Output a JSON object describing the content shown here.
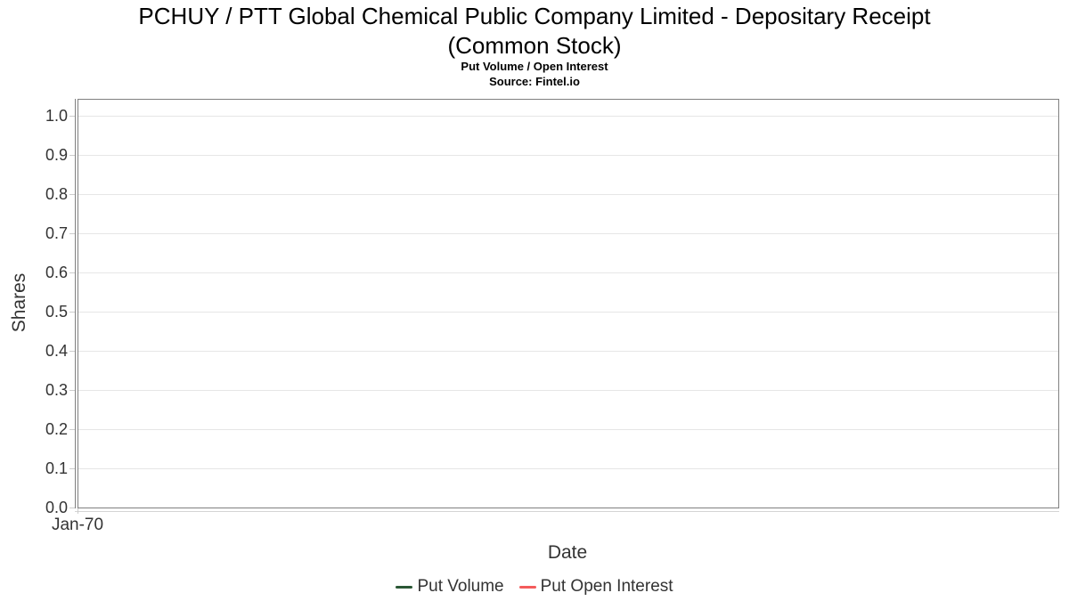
{
  "chart": {
    "title_line1": "PCHUY / PTT Global Chemical Public Company Limited - Depositary Receipt",
    "title_line2": "(Common Stock)",
    "subtitle": "Put Volume / Open Interest",
    "source": "Source: Fintel.io",
    "xlabel": "Date",
    "ylabel": "Shares",
    "x_tick": "Jan-70"
  },
  "chart_data": {
    "type": "line",
    "title": "PCHUY / PTT Global Chemical Public Company Limited - Depositary Receipt (Common Stock)",
    "subtitle": "Put Volume / Open Interest",
    "source": "Source: Fintel.io",
    "xlabel": "Date",
    "ylabel": "Shares",
    "ylim": [
      0.0,
      1.04
    ],
    "ytick_labels": [
      "0.0",
      "0.1",
      "0.2",
      "0.3",
      "0.4",
      "0.5",
      "0.6",
      "0.7",
      "0.8",
      "0.9",
      "1.0"
    ],
    "xtick_labels": [
      "Jan-70"
    ],
    "grid": true,
    "legend_position": "bottom",
    "series": [
      {
        "name": "Put Volume",
        "color": "#2a5735",
        "x": [],
        "values": []
      },
      {
        "name": "Put Open Interest",
        "color": "#f45b5b",
        "x": [],
        "values": []
      }
    ]
  },
  "colors": {
    "plot_border": "#808080",
    "gridline": "#e6e6e6",
    "tick": "#cccccc",
    "text": "#333333",
    "title": "#000000"
  }
}
